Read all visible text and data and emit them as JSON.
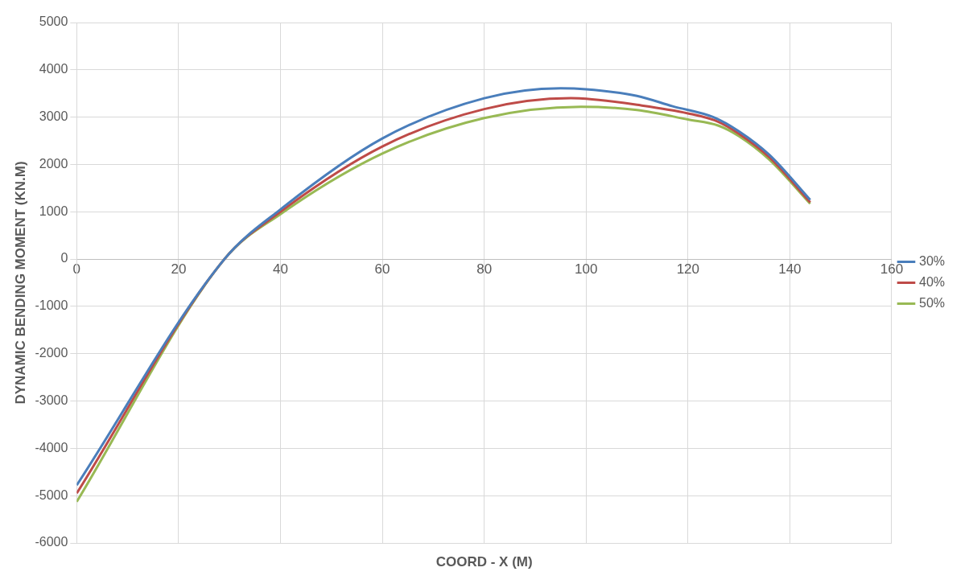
{
  "chart_data": {
    "type": "line",
    "xlabel": "COORD - X (M)",
    "ylabel": "DYNAMIC BENDING MOMENT (KN.M)",
    "xlim": [
      0,
      160
    ],
    "xticks": [
      0,
      20,
      40,
      60,
      80,
      100,
      120,
      140,
      160
    ],
    "ylim": [
      -6000,
      5000
    ],
    "yticks": [
      -6000,
      -5000,
      -4000,
      -3000,
      -2000,
      -1000,
      0,
      1000,
      2000,
      3000,
      4000,
      5000
    ],
    "grid": true,
    "legend": "right",
    "marker": "none",
    "line_style": "solid",
    "series": [
      {
        "name": "30%",
        "color": "#4a7ebb",
        "x": [
          0,
          29,
          40,
          60,
          80,
          95,
          100,
          110,
          117,
          125,
          130,
          136,
          144
        ],
        "values": [
          -4780,
          0,
          1050,
          2550,
          3400,
          3610,
          3590,
          3450,
          3230,
          3000,
          2700,
          2200,
          1250
        ]
      },
      {
        "name": "40%",
        "color": "#be4b48",
        "x": [
          0,
          29,
          40,
          60,
          80,
          97,
          100,
          110,
          120,
          126,
          130,
          136,
          144
        ],
        "values": [
          -4950,
          0,
          1000,
          2380,
          3170,
          3400,
          3390,
          3260,
          3080,
          2900,
          2650,
          2150,
          1200
        ]
      },
      {
        "name": "50%",
        "color": "#98b954",
        "x": [
          0,
          29,
          40,
          60,
          80,
          99,
          110,
          120,
          126,
          130,
          136,
          144
        ],
        "values": [
          -5130,
          0,
          950,
          2230,
          2980,
          3220,
          3150,
          2950,
          2820,
          2600,
          2100,
          1170
        ]
      }
    ]
  }
}
